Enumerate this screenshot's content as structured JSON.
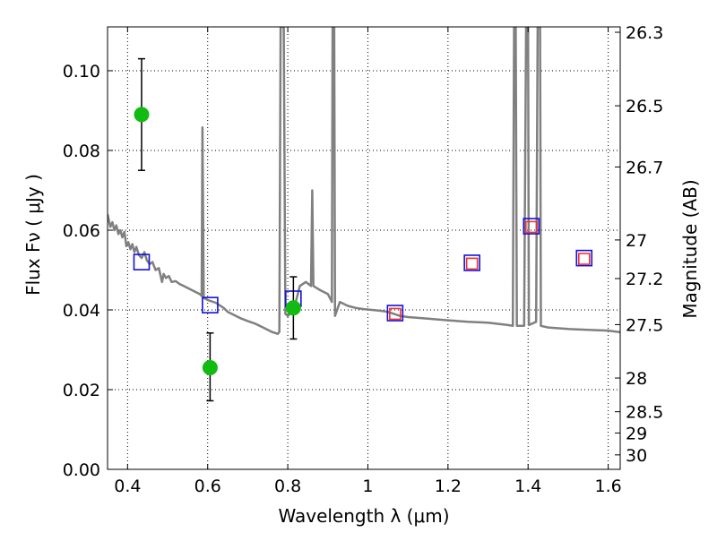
{
  "chart_data": {
    "type": "scatter",
    "xlabel": "Wavelength  λ (μm)",
    "ylabel": "Flux  Fν  ( μJy )",
    "y2label": "Magnitude (AB)",
    "xlim": [
      0.35,
      1.63
    ],
    "ylim": [
      0.0,
      0.111
    ],
    "x_ticks": [
      0.4,
      0.6,
      0.8,
      1.0,
      1.2,
      1.4,
      1.6
    ],
    "x_tick_labels": [
      "0.4",
      "0.6",
      "0.8",
      "1",
      "1.2",
      "1.4",
      "1.6"
    ],
    "y_ticks": [
      0.0,
      0.02,
      0.04,
      0.06,
      0.08,
      0.1
    ],
    "y_tick_labels": [
      "0.00",
      "0.02",
      "0.04",
      "0.06",
      "0.08",
      "0.10"
    ],
    "y2_ticks": [
      {
        "label": "26.3",
        "mag": 26.3
      },
      {
        "label": "26.5",
        "mag": 26.5
      },
      {
        "label": "26.7",
        "mag": 26.7
      },
      {
        "label": "27",
        "mag": 27.0
      },
      {
        "label": "27.2",
        "mag": 27.2
      },
      {
        "label": "27.5",
        "mag": 27.5
      },
      {
        "label": "28",
        "mag": 28.0
      },
      {
        "label": "28.5",
        "mag": 28.5
      },
      {
        "label": "29",
        "mag": 29.0
      },
      {
        "label": "30",
        "mag": 30.0
      }
    ],
    "grid": true,
    "series": [
      {
        "kind": "observed",
        "marker": "circle",
        "color": "#11bb11",
        "errcolor": "#000000",
        "points": [
          {
            "x": 0.435,
            "y": 0.089,
            "lo": 0.075,
            "hi": 0.103
          },
          {
            "x": 0.606,
            "y": 0.0255,
            "lo": 0.0172,
            "hi": 0.0342
          },
          {
            "x": 0.814,
            "y": 0.0405,
            "lo": 0.0327,
            "hi": 0.0483
          }
        ]
      },
      {
        "kind": "model-band",
        "marker": "square-open",
        "color": "#1111dd",
        "points": [
          {
            "x": 0.435,
            "y": 0.052
          },
          {
            "x": 0.606,
            "y": 0.0412
          },
          {
            "x": 0.814,
            "y": 0.0428
          },
          {
            "x": 1.068,
            "y": 0.0392
          },
          {
            "x": 1.26,
            "y": 0.0518
          },
          {
            "x": 1.408,
            "y": 0.061
          },
          {
            "x": 1.54,
            "y": 0.053
          }
        ]
      },
      {
        "kind": "model-band-red",
        "marker": "square-open",
        "color": "#ee3333",
        "points": [
          {
            "x": 1.068,
            "y": 0.039
          },
          {
            "x": 1.26,
            "y": 0.0516
          },
          {
            "x": 1.408,
            "y": 0.0608
          },
          {
            "x": 1.54,
            "y": 0.0528
          }
        ]
      },
      {
        "kind": "template-spectrum",
        "marker": "line",
        "color": "#808080",
        "points": [
          [
            0.35,
            0.064
          ],
          [
            0.357,
            0.0608
          ],
          [
            0.362,
            0.062
          ],
          [
            0.367,
            0.06
          ],
          [
            0.372,
            0.0612
          ],
          [
            0.377,
            0.059
          ],
          [
            0.382,
            0.06
          ],
          [
            0.387,
            0.0582
          ],
          [
            0.392,
            0.0596
          ],
          [
            0.397,
            0.056
          ],
          [
            0.402,
            0.057
          ],
          [
            0.407,
            0.0552
          ],
          [
            0.412,
            0.0565
          ],
          [
            0.417,
            0.0545
          ],
          [
            0.422,
            0.0558
          ],
          [
            0.428,
            0.0538
          ],
          [
            0.435,
            0.053
          ],
          [
            0.442,
            0.0545
          ],
          [
            0.448,
            0.0525
          ],
          [
            0.455,
            0.0515
          ],
          [
            0.462,
            0.052
          ],
          [
            0.47,
            0.05
          ],
          [
            0.478,
            0.0505
          ],
          [
            0.486,
            0.047
          ],
          [
            0.49,
            0.049
          ],
          [
            0.496,
            0.048
          ],
          [
            0.503,
            0.0485
          ],
          [
            0.51,
            0.047
          ],
          [
            0.52,
            0.0472
          ],
          [
            0.53,
            0.0465
          ],
          [
            0.54,
            0.046
          ],
          [
            0.55,
            0.0455
          ],
          [
            0.56,
            0.045
          ],
          [
            0.57,
            0.0445
          ],
          [
            0.58,
            0.044
          ],
          [
            0.585,
            0.0435
          ],
          [
            0.587,
            0.0858
          ],
          [
            0.59,
            0.043
          ],
          [
            0.6,
            0.0425
          ],
          [
            0.62,
            0.0418
          ],
          [
            0.64,
            0.0405
          ],
          [
            0.65,
            0.0395
          ],
          [
            0.66,
            0.039
          ],
          [
            0.68,
            0.038
          ],
          [
            0.7,
            0.0372
          ],
          [
            0.72,
            0.0365
          ],
          [
            0.74,
            0.0355
          ],
          [
            0.76,
            0.0345
          ],
          [
            0.775,
            0.034
          ],
          [
            0.779,
            0.0345
          ],
          [
            0.782,
            0.111
          ],
          [
            0.79,
            0.111
          ],
          [
            0.794,
            0.039
          ],
          [
            0.8,
            0.0385
          ],
          [
            0.815,
            0.04
          ],
          [
            0.83,
            0.046
          ],
          [
            0.845,
            0.047
          ],
          [
            0.858,
            0.046
          ],
          [
            0.861,
            0.07
          ],
          [
            0.864,
            0.046
          ],
          [
            0.88,
            0.045
          ],
          [
            0.9,
            0.044
          ],
          [
            0.91,
            0.042
          ],
          [
            0.912,
            0.111
          ],
          [
            0.916,
            0.111
          ],
          [
            0.918,
            0.0385
          ],
          [
            0.93,
            0.042
          ],
          [
            0.95,
            0.041
          ],
          [
            0.97,
            0.0405
          ],
          [
            0.99,
            0.0402
          ],
          [
            1.01,
            0.04
          ],
          [
            1.03,
            0.0398
          ],
          [
            1.05,
            0.0395
          ],
          [
            1.08,
            0.0385
          ],
          [
            1.1,
            0.0382
          ],
          [
            1.15,
            0.0378
          ],
          [
            1.2,
            0.0374
          ],
          [
            1.25,
            0.037
          ],
          [
            1.3,
            0.0368
          ],
          [
            1.35,
            0.0362
          ],
          [
            1.362,
            0.036
          ],
          [
            1.365,
            0.111
          ],
          [
            1.369,
            0.111
          ],
          [
            1.372,
            0.036
          ],
          [
            1.39,
            0.036
          ],
          [
            1.395,
            0.111
          ],
          [
            1.4,
            0.111
          ],
          [
            1.402,
            0.0362
          ],
          [
            1.42,
            0.037
          ],
          [
            1.424,
            0.111
          ],
          [
            1.43,
            0.111
          ],
          [
            1.432,
            0.036
          ],
          [
            1.45,
            0.0356
          ],
          [
            1.5,
            0.0352
          ],
          [
            1.55,
            0.035
          ],
          [
            1.6,
            0.0348
          ],
          [
            1.63,
            0.0344
          ]
        ]
      }
    ]
  }
}
